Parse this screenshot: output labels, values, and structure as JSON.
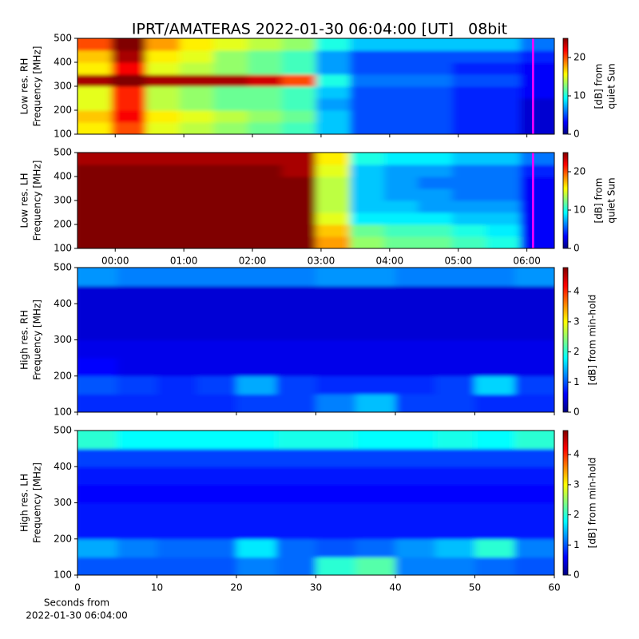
{
  "chart_data": [
    {
      "type": "heatmap",
      "title": "IPRT/AMATERAS 2022-01-30 06:04:00 [UT]   08bit",
      "ylabel": [
        "Low res. RH",
        "Frequency [MHz]"
      ],
      "colorbar_label": [
        "[dB] from",
        "quiet Sun"
      ],
      "colormap": "jet",
      "xlim": [
        -0.55,
        6.4
      ],
      "xticks": [
        0,
        1,
        2,
        3,
        4,
        5,
        6
      ],
      "ylim": [
        100,
        500
      ],
      "yticks": [
        100,
        200,
        300,
        400,
        500
      ],
      "zlim": [
        0,
        25
      ],
      "zticks": [
        0,
        10,
        20
      ],
      "vline": {
        "x": 6.09,
        "color": "#ff00ff"
      },
      "z": [
        [
          16,
          20,
          15,
          14,
          13,
          12,
          11,
          8,
          5,
          5,
          5,
          4,
          4,
          2
        ],
        [
          17,
          22,
          16,
          15,
          14,
          13,
          12,
          8,
          5,
          5,
          5,
          4,
          4,
          2
        ],
        [
          15,
          21,
          14,
          13,
          12,
          12,
          11,
          7,
          5,
          5,
          5,
          4,
          4,
          2
        ],
        [
          15,
          21,
          14,
          13,
          12,
          12,
          11,
          8,
          5,
          5,
          5,
          4,
          4,
          3
        ],
        [
          24,
          25,
          24,
          24,
          24,
          23,
          20,
          10,
          6,
          6,
          6,
          5,
          5,
          3
        ],
        [
          16,
          22,
          15,
          14,
          13,
          12,
          11,
          7,
          5,
          5,
          5,
          4,
          4,
          3
        ],
        [
          17,
          24,
          16,
          15,
          13,
          12,
          11,
          7,
          5,
          5,
          5,
          5,
          5,
          4
        ],
        [
          20,
          25,
          18,
          16,
          15,
          14,
          13,
          10,
          8,
          8,
          8,
          8,
          8,
          6
        ]
      ]
    },
    {
      "type": "heatmap",
      "ylabel": [
        "Low res. LH",
        "Frequency [MHz]"
      ],
      "colorbar_label": [
        "[dB] from",
        "quiet Sun"
      ],
      "colormap": "jet",
      "xlim": [
        -0.55,
        6.4
      ],
      "xticks": [
        {
          "value": 0,
          "label": "00:00"
        },
        {
          "value": 1,
          "label": "01:00"
        },
        {
          "value": 2,
          "label": "02:00"
        },
        {
          "value": 3,
          "label": "03:00"
        },
        {
          "value": 4,
          "label": "04:00"
        },
        {
          "value": 5,
          "label": "05:00"
        },
        {
          "value": 6,
          "label": "06:00"
        }
      ],
      "ylim": [
        100,
        500
      ],
      "yticks": [
        100,
        200,
        300,
        400,
        500
      ],
      "zlim": [
        0,
        25
      ],
      "zticks": [
        0,
        10,
        20
      ],
      "vline": {
        "x": 6.09,
        "color": "#ff00ff"
      },
      "z": [
        [
          25,
          25,
          25,
          25,
          25,
          25,
          25,
          18,
          13,
          12,
          12,
          11,
          10,
          3
        ],
        [
          25,
          25,
          25,
          25,
          25,
          25,
          25,
          17,
          12,
          11,
          11,
          10,
          9,
          3
        ],
        [
          25,
          25,
          25,
          25,
          25,
          25,
          25,
          15,
          9,
          9,
          9,
          8,
          8,
          3
        ],
        [
          25,
          25,
          25,
          25,
          25,
          25,
          25,
          14,
          8,
          8,
          7,
          7,
          7,
          3
        ],
        [
          25,
          25,
          25,
          25,
          25,
          25,
          25,
          14,
          8,
          7,
          7,
          6,
          6,
          3
        ],
        [
          25,
          25,
          25,
          25,
          25,
          25,
          25,
          14,
          8,
          7,
          6,
          6,
          6,
          3
        ],
        [
          25,
          25,
          25,
          25,
          25,
          25,
          24,
          15,
          8,
          7,
          7,
          6,
          6,
          4
        ],
        [
          24,
          24,
          24,
          24,
          24,
          24,
          24,
          16,
          10,
          9,
          9,
          8,
          8,
          6
        ]
      ]
    },
    {
      "type": "heatmap",
      "ylabel": [
        "High res. RH",
        "Frequency [MHz]"
      ],
      "colorbar_label": [
        "[dB] from min-hold"
      ],
      "colormap": "jet",
      "xlim": [
        0,
        60
      ],
      "xticks": [
        0,
        10,
        20,
        30,
        40,
        50,
        60
      ],
      "ylim": [
        100,
        500
      ],
      "yticks": [
        100,
        200,
        300,
        400,
        500
      ],
      "zlim": [
        0,
        4.8
      ],
      "zticks": [
        0,
        1,
        2,
        3,
        4
      ],
      "z": [
        [
          0.8,
          0.8,
          0.8,
          0.8,
          0.9,
          0.9,
          1.2,
          1.5,
          0.9,
          0.9,
          0.8,
          0.8
        ],
        [
          1.0,
          0.9,
          0.8,
          0.9,
          1.4,
          0.9,
          0.8,
          0.8,
          0.8,
          0.9,
          1.6,
          0.9
        ],
        [
          0.6,
          0.5,
          0.5,
          0.5,
          0.5,
          0.5,
          0.5,
          0.5,
          0.5,
          0.5,
          0.5,
          0.5
        ],
        [
          0.5,
          0.5,
          0.5,
          0.5,
          0.5,
          0.5,
          0.5,
          0.5,
          0.5,
          0.5,
          0.5,
          0.5
        ],
        [
          0.4,
          0.4,
          0.4,
          0.4,
          0.4,
          0.4,
          0.4,
          0.4,
          0.4,
          0.4,
          0.4,
          0.4
        ],
        [
          0.4,
          0.4,
          0.4,
          0.4,
          0.4,
          0.4,
          0.4,
          0.4,
          0.4,
          0.4,
          0.4,
          0.4
        ],
        [
          0.4,
          0.4,
          0.4,
          0.4,
          0.4,
          0.4,
          0.4,
          0.4,
          0.4,
          0.4,
          0.4,
          0.4
        ],
        [
          1.3,
          1.2,
          1.2,
          1.2,
          1.2,
          1.2,
          1.3,
          1.3,
          1.2,
          1.2,
          1.2,
          1.3
        ]
      ]
    },
    {
      "type": "heatmap",
      "ylabel": [
        "High res. LH",
        "Frequency [MHz]"
      ],
      "colorbar_label": [
        "[dB] from min-hold"
      ],
      "xlabel": [
        "Seconds from",
        "2022-01-30 06:04:00"
      ],
      "colormap": "jet",
      "xlim": [
        0,
        60
      ],
      "xticks": [
        0,
        10,
        20,
        30,
        40,
        50,
        60
      ],
      "ylim": [
        100,
        500
      ],
      "yticks": [
        100,
        200,
        300,
        400,
        500
      ],
      "zlim": [
        0,
        4.8
      ],
      "zticks": [
        0,
        1,
        2,
        3,
        4
      ],
      "z": [
        [
          1.0,
          1.0,
          1.0,
          1.0,
          1.2,
          1.1,
          2.0,
          2.2,
          1.2,
          1.2,
          1.1,
          1.0
        ],
        [
          1.4,
          1.2,
          1.1,
          1.1,
          1.7,
          1.1,
          1.0,
          1.1,
          1.3,
          1.5,
          2.0,
          1.2
        ],
        [
          0.7,
          0.7,
          0.7,
          0.7,
          0.7,
          0.7,
          0.7,
          0.7,
          0.7,
          0.7,
          0.7,
          0.7
        ],
        [
          0.7,
          0.7,
          0.7,
          0.7,
          0.7,
          0.7,
          0.7,
          0.7,
          0.7,
          0.7,
          0.7,
          0.7
        ],
        [
          0.6,
          0.6,
          0.6,
          0.6,
          0.6,
          0.6,
          0.6,
          0.6,
          0.6,
          0.6,
          0.6,
          0.6
        ],
        [
          0.7,
          0.7,
          0.7,
          0.7,
          0.7,
          0.7,
          0.7,
          0.7,
          0.7,
          0.7,
          0.7,
          0.7
        ],
        [
          0.9,
          0.9,
          0.9,
          0.9,
          0.9,
          0.9,
          0.9,
          0.9,
          0.9,
          0.9,
          0.9,
          0.9
        ],
        [
          2.0,
          1.8,
          1.8,
          1.8,
          1.8,
          1.9,
          1.9,
          1.8,
          1.8,
          1.9,
          1.8,
          2.0
        ]
      ]
    }
  ]
}
